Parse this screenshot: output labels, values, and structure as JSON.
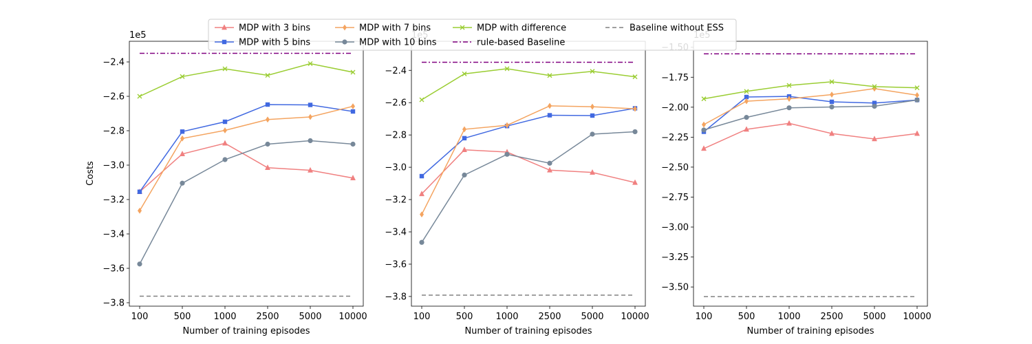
{
  "chart_data": {
    "type": "line",
    "ylabel": "Costs",
    "xlabel": "Number of training episodes",
    "x_categories": [
      "100",
      "500",
      "1000",
      "2500",
      "5000",
      "10000"
    ],
    "legend": {
      "placement": "top-center",
      "columns": 4,
      "entries": [
        "MDP with 3 bins",
        "MDP with 5 bins",
        "MDP with 7 bins",
        "MDP with 10 bins",
        "MDP with difference",
        "rule-based Baseline",
        "Baseline without ESS"
      ]
    },
    "series_styles": [
      {
        "name": "MDP with 3 bins",
        "color": "#f08080",
        "marker": "triangle",
        "dash": "solid"
      },
      {
        "name": "MDP with 5 bins",
        "color": "#4169e1",
        "marker": "square",
        "dash": "solid"
      },
      {
        "name": "MDP with 7 bins",
        "color": "#f4a460",
        "marker": "diamond",
        "dash": "solid"
      },
      {
        "name": "MDP with 10 bins",
        "color": "#778899",
        "marker": "circle",
        "dash": "solid"
      },
      {
        "name": "MDP with difference",
        "color": "#9acd32",
        "marker": "x",
        "dash": "solid"
      },
      {
        "name": "rule-based Baseline",
        "color": "#800080",
        "marker": "none",
        "dash": "dashdot"
      },
      {
        "name": "Baseline without ESS",
        "color": "#808080",
        "marker": "none",
        "dash": "dashed"
      }
    ],
    "panels": [
      {
        "offset_label": "1e5",
        "ylim": [
          -3.82,
          -2.28
        ],
        "yticks": [
          -3.8,
          -3.6,
          -3.4,
          -3.2,
          -3.0,
          -2.8,
          -2.6,
          -2.4
        ],
        "ytick_labels": [
          "−3.8",
          "−3.6",
          "−3.4",
          "−3.2",
          "−3.0",
          "−2.8",
          "−2.6",
          "−2.4"
        ],
        "series": [
          {
            "name": "MDP with 3 bins",
            "values": [
              -3.155,
              -2.935,
              -2.873,
              -3.015,
              -3.03,
              -3.075
            ]
          },
          {
            "name": "MDP with 5 bins",
            "values": [
              -3.155,
              -2.805,
              -2.748,
              -2.648,
              -2.65,
              -2.688
            ]
          },
          {
            "name": "MDP with 7 bins",
            "values": [
              -3.265,
              -2.845,
              -2.798,
              -2.735,
              -2.72,
              -2.658
            ]
          },
          {
            "name": "MDP with 10 bins",
            "values": [
              -3.575,
              -3.105,
              -2.968,
              -2.878,
              -2.858,
              -2.878
            ]
          },
          {
            "name": "MDP with difference",
            "values": [
              -2.6,
              -2.485,
              -2.44,
              -2.478,
              -2.41,
              -2.46
            ]
          },
          {
            "name": "rule-based Baseline",
            "values": [
              -2.35,
              -2.35,
              -2.35,
              -2.35,
              -2.35,
              -2.35
            ]
          },
          {
            "name": "Baseline without ESS",
            "values": [
              -3.762,
              -3.762,
              -3.762,
              -3.762,
              -3.762,
              -3.762
            ]
          }
        ]
      },
      {
        "offset_label": "1e5",
        "ylim": [
          -3.86,
          -2.22
        ],
        "yticks": [
          -3.8,
          -3.6,
          -3.4,
          -3.2,
          -3.0,
          -2.8,
          -2.6,
          -2.4
        ],
        "ytick_labels": [
          "−3.8",
          "−3.6",
          "−3.4",
          "−3.2",
          "−3.0",
          "−2.8",
          "−2.6",
          "−2.4"
        ],
        "series": [
          {
            "name": "MDP with 3 bins",
            "values": [
              -3.165,
              -2.892,
              -2.906,
              -3.018,
              -3.032,
              -3.095
            ]
          },
          {
            "name": "MDP with 5 bins",
            "values": [
              -3.055,
              -2.82,
              -2.745,
              -2.678,
              -2.68,
              -2.635
            ]
          },
          {
            "name": "MDP with 7 bins",
            "values": [
              -3.292,
              -2.765,
              -2.74,
              -2.62,
              -2.625,
              -2.638
            ]
          },
          {
            "name": "MDP with 10 bins",
            "values": [
              -3.465,
              -3.048,
              -2.92,
              -2.975,
              -2.795,
              -2.78
            ]
          },
          {
            "name": "MDP with difference",
            "values": [
              -2.582,
              -2.422,
              -2.39,
              -2.432,
              -2.406,
              -2.44
            ]
          },
          {
            "name": "rule-based Baseline",
            "values": [
              -2.35,
              -2.35,
              -2.35,
              -2.35,
              -2.35,
              -2.35
            ]
          },
          {
            "name": "Baseline without ESS",
            "values": [
              -3.792,
              -3.792,
              -3.792,
              -3.792,
              -3.792,
              -3.792
            ]
          }
        ]
      },
      {
        "offset_label": "1e5",
        "ylim": [
          -3.66,
          -1.45
        ],
        "yticks": [
          -3.5,
          -3.25,
          -3.0,
          -2.75,
          -2.5,
          -2.25,
          -2.0,
          -1.75,
          -1.5
        ],
        "ytick_labels": [
          "−3.50",
          "−3.25",
          "−3.00",
          "−2.75",
          "−2.50",
          "−2.25",
          "−2.00",
          "−1.75",
          "−1.50"
        ],
        "series": [
          {
            "name": "MDP with 3 bins",
            "values": [
              -2.345,
              -2.185,
              -2.135,
              -2.22,
              -2.265,
              -2.22
            ]
          },
          {
            "name": "MDP with 5 bins",
            "values": [
              -2.205,
              -1.915,
              -1.91,
              -1.955,
              -1.965,
              -1.94
            ]
          },
          {
            "name": "MDP with 7 bins",
            "values": [
              -2.145,
              -1.95,
              -1.93,
              -1.895,
              -1.845,
              -1.9
            ]
          },
          {
            "name": "MDP with 10 bins",
            "values": [
              -2.19,
              -2.085,
              -2.005,
              -1.998,
              -1.992,
              -1.94
            ]
          },
          {
            "name": "MDP with difference",
            "values": [
              -1.93,
              -1.868,
              -1.818,
              -1.788,
              -1.828,
              -1.838
            ]
          },
          {
            "name": "rule-based Baseline",
            "values": [
              -1.555,
              -1.555,
              -1.555,
              -1.555,
              -1.555,
              -1.555
            ]
          },
          {
            "name": "Baseline without ESS",
            "values": [
              -3.58,
              -3.58,
              -3.58,
              -3.58,
              -3.58,
              -3.58
            ]
          }
        ]
      }
    ]
  }
}
